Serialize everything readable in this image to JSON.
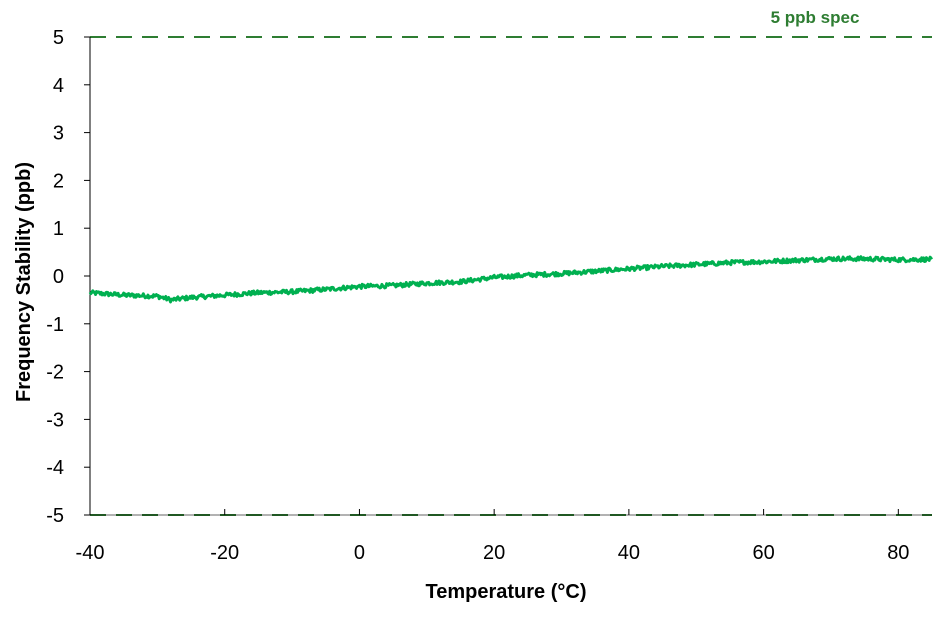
{
  "chart_data": {
    "type": "line",
    "xlabel": "Temperature (°C)",
    "ylabel": "Frequency Stability (ppb)",
    "xlim": [
      -40,
      85
    ],
    "ylim": [
      -5,
      5
    ],
    "x_ticks": [
      -40,
      -20,
      0,
      20,
      40,
      60,
      80
    ],
    "y_ticks": [
      5,
      4,
      3,
      2,
      1,
      0,
      -1,
      -2,
      -3,
      -4,
      -5
    ],
    "x_tick_labels": [
      "-40",
      "-20",
      "0",
      "20",
      "40",
      "60",
      "80"
    ],
    "y_tick_labels": [
      "5",
      "4",
      "3",
      "2",
      "1",
      "0",
      "-1",
      "-2",
      "-3",
      "-4",
      "-5"
    ],
    "grid": false,
    "series": [
      {
        "color": "#00b050",
        "x": [
          -40,
          -35,
          -30,
          -28,
          -25,
          -20,
          -15,
          -10,
          -5,
          0,
          5,
          10,
          15,
          20,
          25,
          30,
          35,
          40,
          45,
          50,
          55,
          60,
          65,
          70,
          75,
          80,
          85
        ],
        "y": [
          -0.35,
          -0.4,
          -0.42,
          -0.5,
          -0.45,
          -0.4,
          -0.35,
          -0.33,
          -0.28,
          -0.22,
          -0.2,
          -0.15,
          -0.12,
          -0.03,
          0.02,
          0.05,
          0.1,
          0.15,
          0.2,
          0.24,
          0.28,
          0.3,
          0.33,
          0.36,
          0.36,
          0.34,
          0.35
        ]
      }
    ],
    "reference_lines": [
      {
        "y": 5,
        "label": "5 ppb spec",
        "color": "#2e7d32",
        "style": "dashed"
      },
      {
        "y": -5,
        "label": "",
        "color": "#2e7d32",
        "style": "dashed"
      }
    ]
  }
}
